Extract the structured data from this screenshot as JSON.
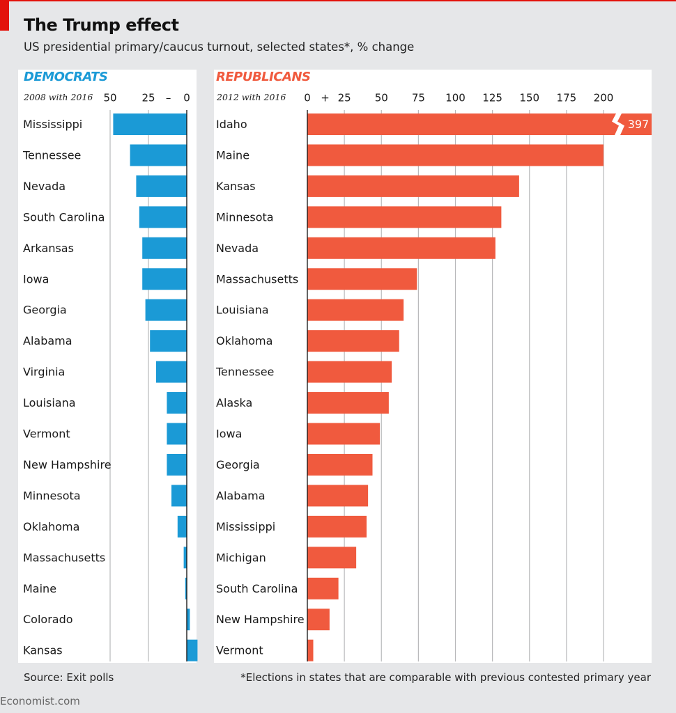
{
  "header": {
    "title": "The Trump effect",
    "subtitle": "US presidential primary/caucus turnout, selected states*, % change"
  },
  "footer": {
    "source": "Source: Exit polls",
    "footnote": "*Elections in states that are comparable with previous contested primary year",
    "credit": "Economist.com"
  },
  "colors": {
    "democrats": "#1b9ad6",
    "republicans": "#f05a3e",
    "brand_red": "#e3120b",
    "background": "#e6e7e9",
    "panel": "#ffffff",
    "gridline": "#b8b9bb"
  },
  "chart_data": [
    {
      "type": "bar",
      "orientation": "horizontal",
      "title": "DEMOCRATS",
      "subtitle": "2008 with 2016",
      "tick_labels": [
        "50",
        "25",
        "–",
        "0"
      ],
      "tick_values": [
        -50,
        -25,
        0
      ],
      "xlim": [
        -51,
        6
      ],
      "categories": [
        "Mississippi",
        "Tennessee",
        "Nevada",
        "South Carolina",
        "Arkansas",
        "Iowa",
        "Georgia",
        "Alabama",
        "Virginia",
        "Louisiana",
        "Vermont",
        "New Hampshire",
        "Minnesota",
        "Oklahoma",
        "Massachusetts",
        "Maine",
        "Colorado",
        "Kansas"
      ],
      "values": [
        -48,
        -37,
        -33,
        -31,
        -29,
        -29,
        -27,
        -24,
        -20,
        -13,
        -13,
        -13,
        -10,
        -6,
        -2,
        -1,
        2,
        7
      ]
    },
    {
      "type": "bar",
      "orientation": "horizontal",
      "title": "REPUBLICANS",
      "subtitle": "2012 with 2016",
      "tick_labels": [
        "0",
        "+",
        "25",
        "50",
        "75",
        "100",
        "125",
        "150",
        "175",
        "200"
      ],
      "tick_values": [
        0,
        25,
        50,
        75,
        100,
        125,
        150,
        175,
        200
      ],
      "xlim": [
        0,
        232
      ],
      "axis_break": {
        "category": "Idaho",
        "label": "397"
      },
      "categories": [
        "Idaho",
        "Maine",
        "Kansas",
        "Minnesota",
        "Nevada",
        "Massachusetts",
        "Louisiana",
        "Oklahoma",
        "Tennessee",
        "Alaska",
        "Iowa",
        "Georgia",
        "Alabama",
        "Mississippi",
        "Michigan",
        "South Carolina",
        "New Hampshire",
        "Vermont"
      ],
      "values": [
        397,
        200,
        143,
        131,
        127,
        74,
        65,
        62,
        57,
        55,
        49,
        44,
        41,
        40,
        33,
        21,
        15,
        4
      ]
    }
  ]
}
